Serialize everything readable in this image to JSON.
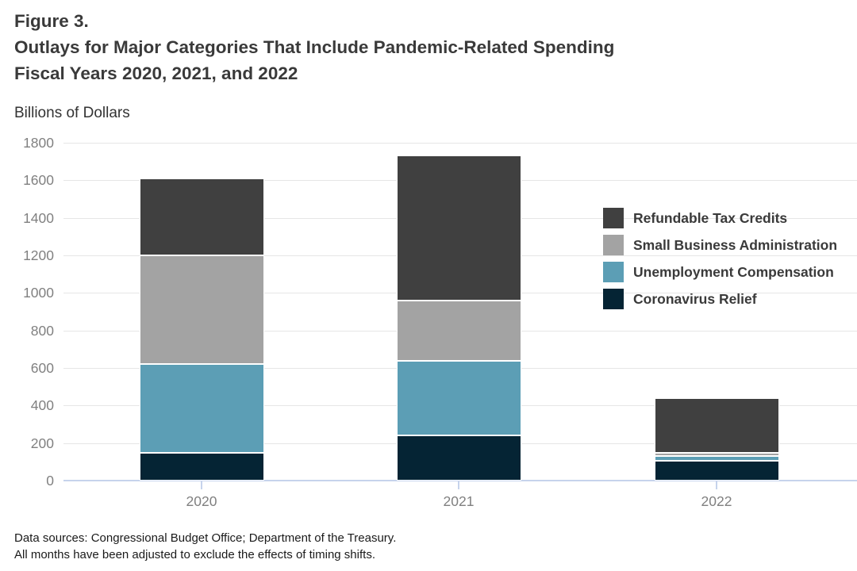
{
  "header": {
    "figure_label": "Figure 3.",
    "title_line1": "Outlays for Major Categories That Include Pandemic-Related Spending",
    "title_line2": "Fiscal Years 2020, 2021, and 2022",
    "units_label": "Billions of Dollars"
  },
  "footer": {
    "line1": "Data sources: Congressional Budget Office; Department of the Treasury.",
    "line2": "All months have been adjusted to exclude the effects of timing shifts."
  },
  "chart_data": {
    "type": "bar",
    "stacked": true,
    "title": "Outlays for Major Categories That Include Pandemic-Related Spending",
    "subtitle": "Fiscal Years 2020, 2021, and 2022",
    "ylabel": "Billions of Dollars",
    "xlabel": "",
    "categories": [
      "2020",
      "2021",
      "2022"
    ],
    "series": [
      {
        "name": "Coronavirus Relief",
        "color": "#052434",
        "values": [
          149,
          243,
          105
        ]
      },
      {
        "name": "Unemployment Compensation",
        "color": "#5c9eb5",
        "values": [
          472,
          395,
          25
        ]
      },
      {
        "name": "Small Business Administration",
        "color": "#a3a3a3",
        "values": [
          578,
          322,
          20
        ]
      },
      {
        "name": "Refundable Tax Credits",
        "color": "#404040",
        "values": [
          412,
          773,
          288
        ]
      }
    ],
    "totals": [
      1611,
      1733,
      438
    ],
    "ylim": [
      0,
      1800
    ],
    "ytick_step": 200,
    "ytick_labels": [
      "0",
      "200",
      "400",
      "600",
      "800",
      "1000",
      "1200",
      "1400",
      "1600",
      "1800"
    ],
    "grid": "horizontal",
    "legend_position": "upper-right-overlapping-plot",
    "legend_order_top_to_bottom": [
      "Refundable Tax Credits",
      "Small Business Administration",
      "Unemployment Compensation",
      "Coronavirus Relief"
    ],
    "colors": {
      "gridline": "#e6e6e6",
      "axis_baseline": "#c6d3ec",
      "tick_label": "#808080",
      "segment_separator": "#ffffff"
    }
  }
}
